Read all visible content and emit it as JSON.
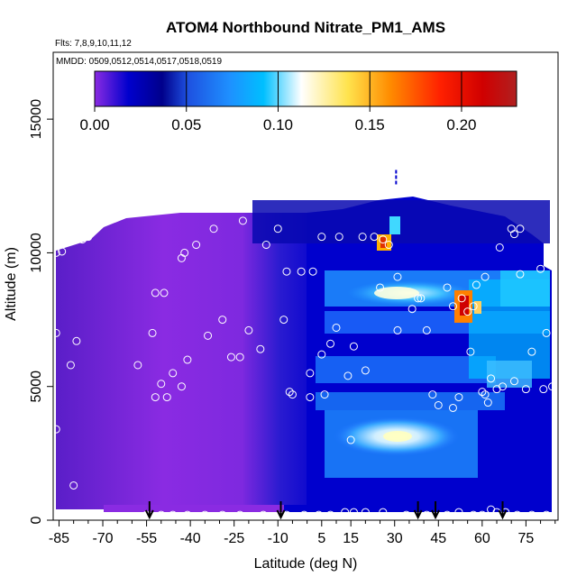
{
  "chart_data": {
    "type": "heatmap",
    "title": "ATOM4 Northbound Nitrate_PM1_AMS",
    "subtitle_flights": "Flts: 7,8,9,10,11,12",
    "subtitle_dates": "MMDD: 0509,0512,0514,0517,0518,0519",
    "xlabel": "Latitude (deg N)",
    "ylabel": "Altitude (m)",
    "xlim": [
      -87,
      86
    ],
    "ylim": [
      0,
      17500
    ],
    "xticks": [
      -85,
      -70,
      -55,
      -40,
      -25,
      -10,
      5,
      15,
      30,
      45,
      60,
      75
    ],
    "xtick_labels": [
      "-85",
      "-70",
      "-55",
      "-40",
      "-25",
      "-10",
      "5",
      "15",
      "30",
      "45",
      "60",
      "75"
    ],
    "yticks": [
      0,
      5000,
      10000,
      15000
    ],
    "ytick_labels": [
      "0",
      "5000",
      "10000",
      "15000"
    ],
    "colorbar": {
      "range": [
        0.0,
        0.23
      ],
      "ticks": [
        0.0,
        0.05,
        0.1,
        0.15,
        0.2
      ],
      "tick_labels": [
        "0.00",
        "0.05",
        "0.10",
        "0.15",
        "0.20"
      ],
      "colors": [
        "#8a2be2",
        "#0000cd",
        "#00008b",
        "#1e90ff",
        "#00bfff",
        "#ffffff",
        "#ffd700",
        "#ff8c00",
        "#ff0000",
        "#b22222"
      ]
    },
    "profile_markers_lat": [
      -54,
      -9,
      38,
      44,
      67
    ],
    "sample_points": [
      {
        "x": -86,
        "y": 10000
      },
      {
        "x": -84,
        "y": 10050
      },
      {
        "x": -86,
        "y": 7000
      },
      {
        "x": -86,
        "y": 3400
      },
      {
        "x": -81,
        "y": 5800
      },
      {
        "x": -79,
        "y": 6700
      },
      {
        "x": -77,
        "y": 10500
      },
      {
        "x": -75,
        "y": 10600
      },
      {
        "x": -73,
        "y": 11200
      },
      {
        "x": -71,
        "y": 11300
      },
      {
        "x": -67,
        "y": 11400
      },
      {
        "x": -58,
        "y": 5800
      },
      {
        "x": -53,
        "y": 7000
      },
      {
        "x": -52,
        "y": 8500
      },
      {
        "x": -49,
        "y": 8500
      },
      {
        "x": -52,
        "y": 4600
      },
      {
        "x": -50,
        "y": 5100
      },
      {
        "x": -48,
        "y": 4600
      },
      {
        "x": -46,
        "y": 5500
      },
      {
        "x": -43,
        "y": 5000
      },
      {
        "x": -41,
        "y": 6000
      },
      {
        "x": -43,
        "y": 9800
      },
      {
        "x": -42,
        "y": 10000
      },
      {
        "x": -38,
        "y": 10300
      },
      {
        "x": -34,
        "y": 6900
      },
      {
        "x": -32,
        "y": 10900
      },
      {
        "x": -29,
        "y": 7500
      },
      {
        "x": -26,
        "y": 6100
      },
      {
        "x": -23,
        "y": 6100
      },
      {
        "x": -22,
        "y": 11200
      },
      {
        "x": -20,
        "y": 7100
      },
      {
        "x": -16,
        "y": 6400
      },
      {
        "x": -14,
        "y": 10300
      },
      {
        "x": -10,
        "y": 10900
      },
      {
        "x": -8,
        "y": 7500
      },
      {
        "x": -7,
        "y": 9300
      },
      {
        "x": -6,
        "y": 4800
      },
      {
        "x": -5,
        "y": 4700
      },
      {
        "x": -2,
        "y": 9300
      },
      {
        "x": 1,
        "y": 4600
      },
      {
        "x": 1,
        "y": 5500
      },
      {
        "x": 2,
        "y": 9300
      },
      {
        "x": 5,
        "y": 10600
      },
      {
        "x": 5,
        "y": 6200
      },
      {
        "x": 6,
        "y": 4700
      },
      {
        "x": 8,
        "y": 6600
      },
      {
        "x": 10,
        "y": 7200
      },
      {
        "x": 11,
        "y": 10600
      },
      {
        "x": 14,
        "y": 5400
      },
      {
        "x": 15,
        "y": 3000
      },
      {
        "x": 16,
        "y": 6500
      },
      {
        "x": 19,
        "y": 10600
      },
      {
        "x": 20,
        "y": 5600
      },
      {
        "x": 23,
        "y": 10600
      },
      {
        "x": 25,
        "y": 8700
      },
      {
        "x": 26,
        "y": 10500
      },
      {
        "x": 28,
        "y": 10300
      },
      {
        "x": 31,
        "y": 7100
      },
      {
        "x": 31,
        "y": 9100
      },
      {
        "x": 36,
        "y": 7900
      },
      {
        "x": 38,
        "y": 8300
      },
      {
        "x": 39,
        "y": 8300
      },
      {
        "x": 41,
        "y": 7100
      },
      {
        "x": 43,
        "y": 4700
      },
      {
        "x": 45,
        "y": 4300
      },
      {
        "x": 48,
        "y": 8700
      },
      {
        "x": 50,
        "y": 8000
      },
      {
        "x": 50,
        "y": 4200
      },
      {
        "x": 52,
        "y": 4600
      },
      {
        "x": 53,
        "y": 8300
      },
      {
        "x": 55,
        "y": 7800
      },
      {
        "x": 56,
        "y": 6300
      },
      {
        "x": 57,
        "y": 8000
      },
      {
        "x": 58,
        "y": 8800
      },
      {
        "x": 60,
        "y": 4800
      },
      {
        "x": 61,
        "y": 4700
      },
      {
        "x": 61,
        "y": 9100
      },
      {
        "x": 62,
        "y": 4400
      },
      {
        "x": 63,
        "y": 5300
      },
      {
        "x": 65,
        "y": 4900
      },
      {
        "x": 66,
        "y": 10200
      },
      {
        "x": 67,
        "y": 5000
      },
      {
        "x": 70,
        "y": 10900
      },
      {
        "x": 71,
        "y": 10700
      },
      {
        "x": 71,
        "y": 5200
      },
      {
        "x": 73,
        "y": 9200
      },
      {
        "x": 73,
        "y": 10900
      },
      {
        "x": 75,
        "y": 4900
      },
      {
        "x": 77,
        "y": 6300
      },
      {
        "x": 80,
        "y": 9400
      },
      {
        "x": 81,
        "y": 4900
      },
      {
        "x": 82,
        "y": 7000
      },
      {
        "x": 84,
        "y": 5000
      },
      {
        "x": -80,
        "y": 1300
      },
      {
        "x": -55,
        "y": 200
      },
      {
        "x": -50,
        "y": 200
      },
      {
        "x": -46,
        "y": 200
      },
      {
        "x": -41,
        "y": 200
      },
      {
        "x": -35,
        "y": 200
      },
      {
        "x": -29,
        "y": 200
      },
      {
        "x": -23,
        "y": 200
      },
      {
        "x": -15,
        "y": 200
      },
      {
        "x": -7,
        "y": 200
      },
      {
        "x": -1,
        "y": 200
      },
      {
        "x": 4,
        "y": 200
      },
      {
        "x": 8,
        "y": 200
      },
      {
        "x": 13,
        "y": 300
      },
      {
        "x": 16,
        "y": 300
      },
      {
        "x": 20,
        "y": 300
      },
      {
        "x": 26,
        "y": 300
      },
      {
        "x": 34,
        "y": 200
      },
      {
        "x": 41,
        "y": 200
      },
      {
        "x": 48,
        "y": 200
      },
      {
        "x": 52,
        "y": 300
      },
      {
        "x": 57,
        "y": 200
      },
      {
        "x": 60,
        "y": 200
      },
      {
        "x": 63,
        "y": 400
      },
      {
        "x": 65,
        "y": 300
      },
      {
        "x": 68,
        "y": 300
      },
      {
        "x": 72,
        "y": 200
      },
      {
        "x": 77,
        "y": 200
      },
      {
        "x": 82,
        "y": 200
      }
    ]
  }
}
